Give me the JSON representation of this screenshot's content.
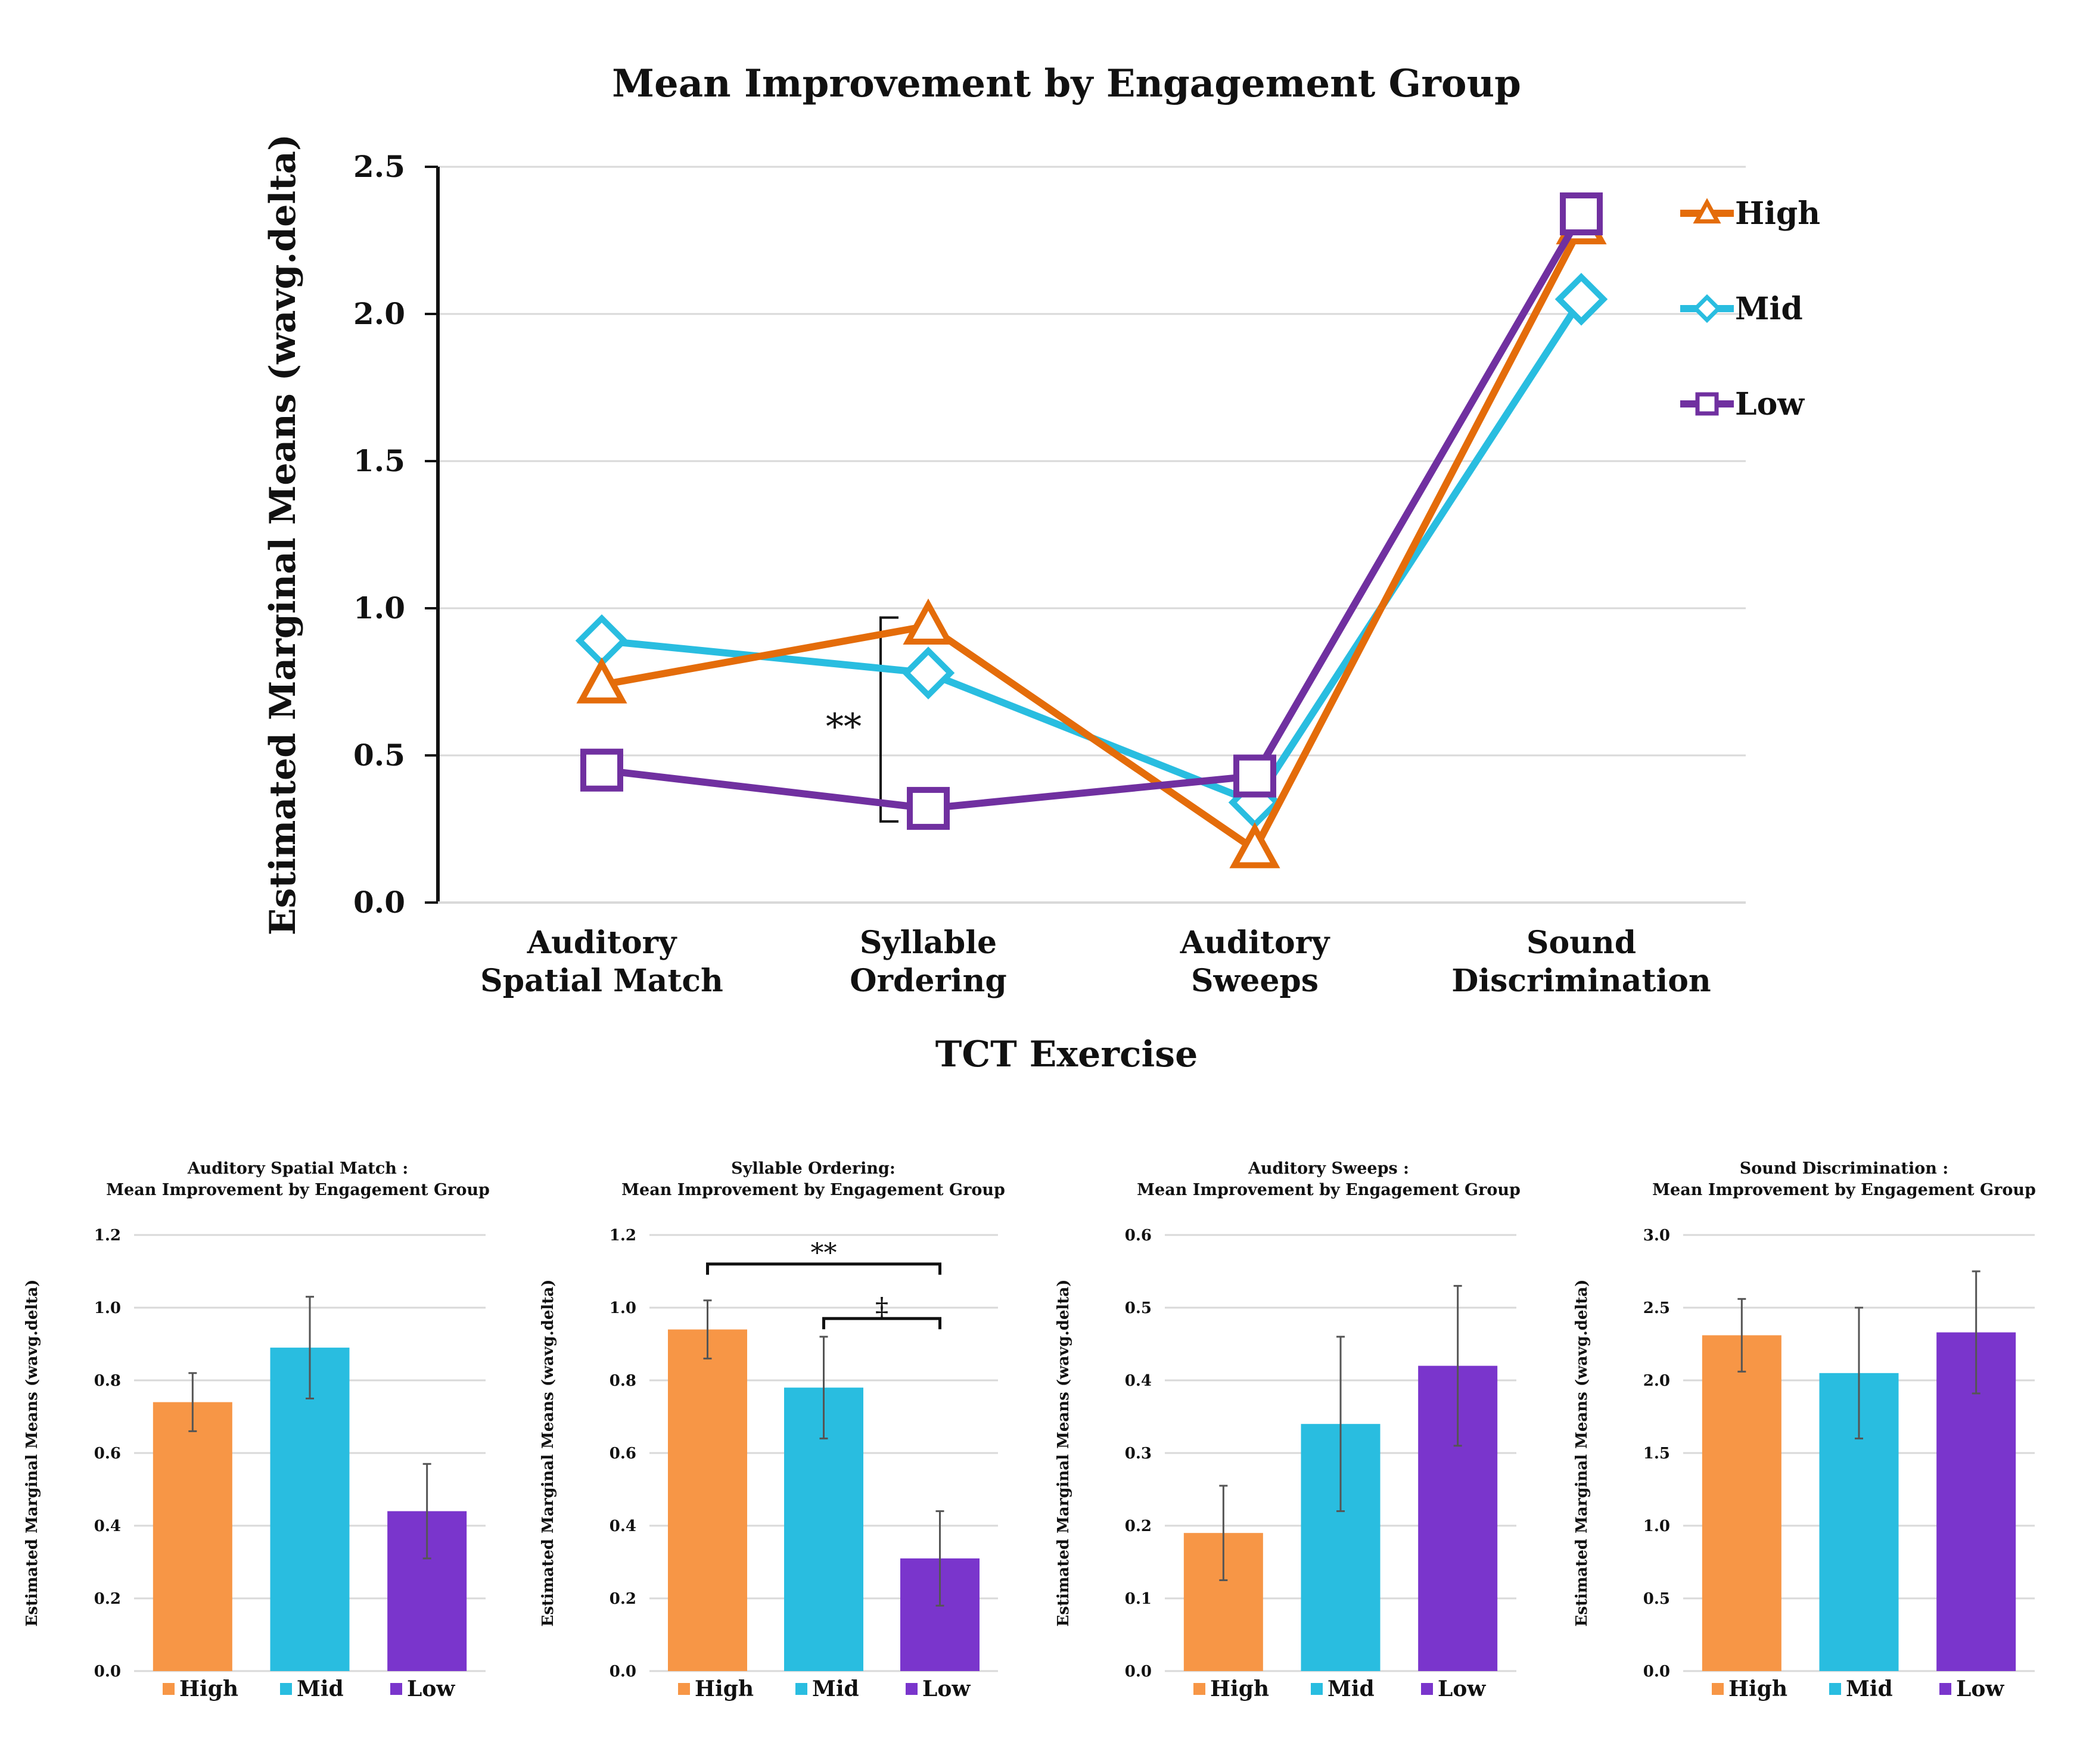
{
  "chart_data": [
    {
      "type": "line",
      "title": "Mean Improvement by Engagement Group",
      "xlabel": "TCT Exercise",
      "ylabel": "Estimated Marginal Means (wavg.delta)",
      "ylim": [
        0,
        2.5
      ],
      "yticks": [
        "0.0",
        "0.5",
        "1.0",
        "1.5",
        "2.0",
        "2.5"
      ],
      "categories": [
        [
          "Auditory",
          "Spatial Match"
        ],
        [
          "Syllable",
          "Ordering"
        ],
        [
          "Auditory",
          "Sweeps"
        ],
        [
          "Sound",
          "Discrimination"
        ]
      ],
      "series": [
        {
          "name": "High",
          "color": "#e46c0a",
          "marker": "triangle",
          "values": [
            0.74,
            0.94,
            0.18,
            2.3
          ]
        },
        {
          "name": "Mid",
          "color": "#29bde0",
          "marker": "diamond",
          "values": [
            0.89,
            0.78,
            0.34,
            2.05
          ]
        },
        {
          "name": "Low",
          "color": "#7030a0",
          "marker": "square",
          "values": [
            0.45,
            0.32,
            0.43,
            2.34
          ]
        }
      ],
      "annotations": [
        {
          "text": "**",
          "between": [
            "High",
            "Low"
          ],
          "category_index": 1
        }
      ],
      "legend": "right",
      "grid": true
    },
    {
      "type": "bar",
      "title": [
        "Auditory Spatial Match :",
        "Mean Improvement by Engagement Group"
      ],
      "ylabel": "Estimated Marginal Means (wavg.delta)",
      "ylim": [
        0,
        1.2
      ],
      "yticks": [
        "0.0",
        "0.2",
        "0.4",
        "0.6",
        "0.8",
        "1.0",
        "1.2"
      ],
      "categories": [
        "High",
        "Mid",
        "Low"
      ],
      "colors": [
        "#f79646",
        "#29bde0",
        "#7a35cc"
      ],
      "values": [
        0.74,
        0.89,
        0.44
      ],
      "error": [
        0.08,
        0.14,
        0.13
      ],
      "annotations": []
    },
    {
      "type": "bar",
      "title": [
        "Syllable Ordering:",
        "Mean Improvement by Engagement Group"
      ],
      "ylabel": "Estimated Marginal Means (wavg.delta)",
      "ylim": [
        0,
        1.2
      ],
      "yticks": [
        "0.0",
        "0.2",
        "0.4",
        "0.6",
        "0.8",
        "1.0",
        "1.2"
      ],
      "categories": [
        "High",
        "Mid",
        "Low"
      ],
      "colors": [
        "#f79646",
        "#29bde0",
        "#7a35cc"
      ],
      "values": [
        0.94,
        0.78,
        0.31
      ],
      "error": [
        0.08,
        0.14,
        0.13
      ],
      "annotations": [
        {
          "text": "**",
          "from": 0,
          "to": 2,
          "level": 1.12
        },
        {
          "text": "‡",
          "from": 1,
          "to": 2,
          "level": 0.97
        }
      ]
    },
    {
      "type": "bar",
      "title": [
        "Auditory Sweeps :",
        "Mean Improvement by Engagement Group"
      ],
      "ylabel": "Estimated Marginal Means (wavg.delta)",
      "ylim": [
        0,
        0.6
      ],
      "yticks": [
        "0.0",
        "0.1",
        "0.2",
        "0.3",
        "0.4",
        "0.5",
        "0.6"
      ],
      "categories": [
        "High",
        "Mid",
        "Low"
      ],
      "colors": [
        "#f79646",
        "#29bde0",
        "#7a35cc"
      ],
      "values": [
        0.19,
        0.34,
        0.42
      ],
      "error": [
        0.065,
        0.12,
        0.11
      ],
      "annotations": []
    },
    {
      "type": "bar",
      "title": [
        "Sound Discrimination :",
        "Mean Improvement by Engagement Group"
      ],
      "ylabel": "Estimated Marginal Means (wavg.delta)",
      "ylim": [
        0,
        3.0
      ],
      "yticks": [
        "0.0",
        "0.5",
        "1.0",
        "1.5",
        "2.0",
        "2.5",
        "3.0"
      ],
      "categories": [
        "High",
        "Mid",
        "Low"
      ],
      "colors": [
        "#f79646",
        "#29bde0",
        "#7a35cc"
      ],
      "values": [
        2.31,
        2.05,
        2.33
      ],
      "error": [
        0.25,
        0.45,
        0.42
      ],
      "annotations": []
    }
  ]
}
